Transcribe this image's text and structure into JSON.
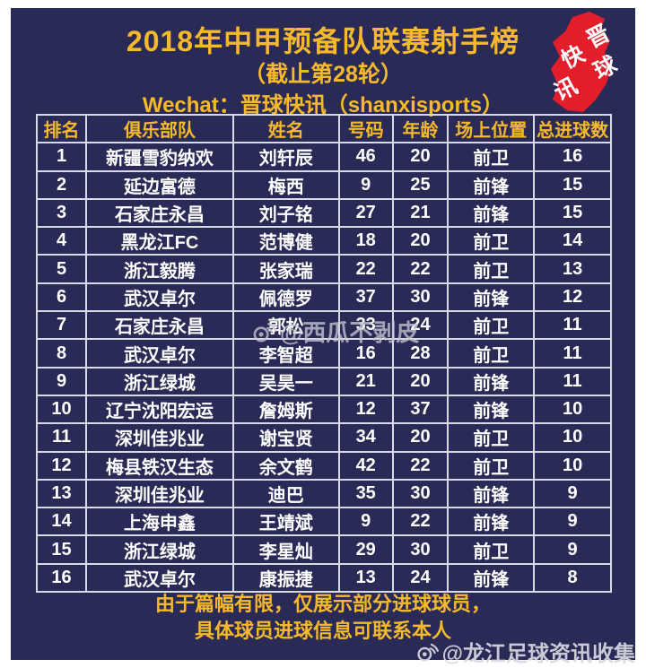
{
  "header": {
    "title": "2018年中甲预备队联赛射手榜",
    "subtitle": "（截止第28轮）",
    "wechat_line": "Wechat：晋球快讯（shanxisports）"
  },
  "logo": {
    "name": "晋球快讯",
    "chars": [
      "晋",
      "球",
      "快",
      "讯"
    ],
    "color": "#E31E2B",
    "text_color": "#FFFFFF"
  },
  "chart_data": {
    "type": "table",
    "title": "2018年中甲预备队联赛射手榜",
    "subtitle": "（截止第28轮）",
    "columns": [
      "排名",
      "俱乐部队",
      "姓名",
      "号码",
      "年龄",
      "场上位置",
      "总进球数"
    ],
    "column_keys": [
      "rank",
      "club",
      "name",
      "number",
      "age",
      "position",
      "goals"
    ],
    "rows": [
      [
        "1",
        "新疆雪豹纳欢",
        "刘轩辰",
        "46",
        "20",
        "前卫",
        "16"
      ],
      [
        "2",
        "延边富德",
        "梅西",
        "9",
        "25",
        "前锋",
        "15"
      ],
      [
        "3",
        "石家庄永昌",
        "刘子铭",
        "27",
        "21",
        "前锋",
        "15"
      ],
      [
        "4",
        "黑龙江FC",
        "范博健",
        "18",
        "20",
        "前卫",
        "14"
      ],
      [
        "5",
        "浙江毅腾",
        "张家瑞",
        "22",
        "22",
        "前卫",
        "13"
      ],
      [
        "6",
        "武汉卓尔",
        "佩德罗",
        "37",
        "30",
        "前锋",
        "12"
      ],
      [
        "7",
        "石家庄永昌",
        "郭松",
        "33",
        "24",
        "前卫",
        "11"
      ],
      [
        "8",
        "武汉卓尔",
        "李智超",
        "16",
        "28",
        "前卫",
        "11"
      ],
      [
        "9",
        "浙江绿城",
        "吴昊一",
        "21",
        "20",
        "前锋",
        "11"
      ],
      [
        "10",
        "辽宁沈阳宏运",
        "詹姆斯",
        "12",
        "37",
        "前锋",
        "10"
      ],
      [
        "11",
        "深圳佳兆业",
        "谢宝贤",
        "34",
        "20",
        "前卫",
        "10"
      ],
      [
        "12",
        "梅县铁汉生态",
        "余文鹤",
        "42",
        "22",
        "前卫",
        "10"
      ],
      [
        "13",
        "深圳佳兆业",
        "迪巴",
        "35",
        "30",
        "前锋",
        "9"
      ],
      [
        "14",
        "上海申鑫",
        "王靖斌",
        "9",
        "22",
        "前锋",
        "9"
      ],
      [
        "15",
        "浙江绿城",
        "李星灿",
        "29",
        "30",
        "前卫",
        "9"
      ],
      [
        "16",
        "武汉卓尔",
        "康振捷",
        "13",
        "24",
        "前锋",
        "8"
      ]
    ]
  },
  "footer": {
    "line1": "由于篇幅有限，仅展示部分进球球员，",
    "line2": "具体球员进球信息可联系本人"
  },
  "watermarks": {
    "center": {
      "handle": "@西瓜不剥皮"
    },
    "bottom": {
      "handle": "@龙江足球资讯收集"
    }
  },
  "colors": {
    "background": "#2A2A57",
    "accent_gold": "#F6B92B",
    "logo_red": "#E31E2B",
    "table_border": "#D9DAE8",
    "cell_text": "#FFFFFF"
  }
}
